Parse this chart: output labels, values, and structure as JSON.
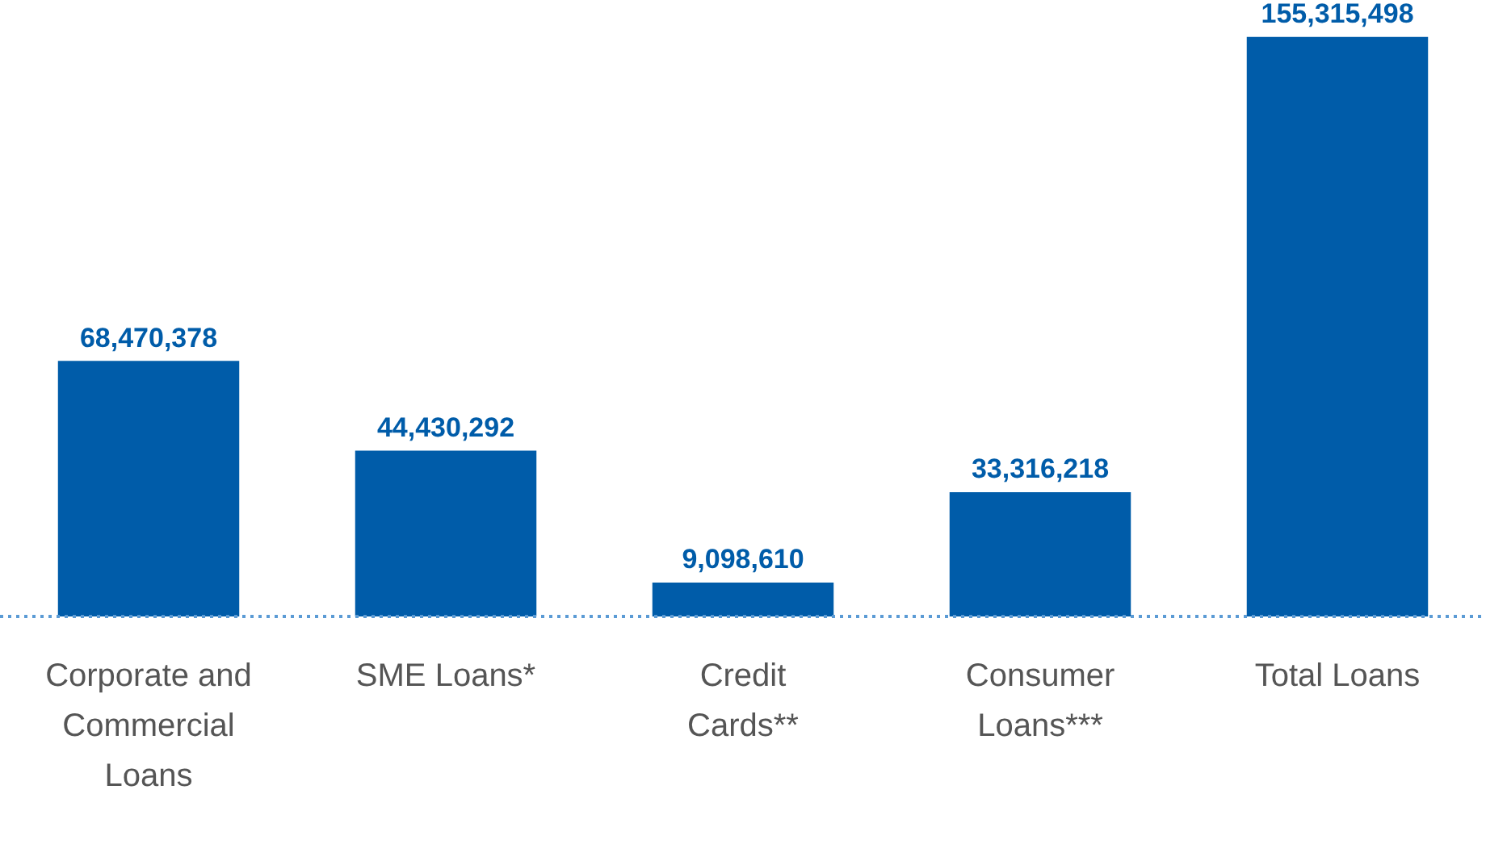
{
  "chart_data": {
    "type": "bar",
    "categories": [
      "Corporate and Commercial Loans",
      "SME Loans*",
      "Credit Cards**",
      "Consumer Loans***",
      "Total Loans"
    ],
    "values": [
      68470378,
      44430292,
      9098610,
      33316218,
      155315498
    ],
    "color": "#005ca9",
    "value_labels": [
      "68,470,378",
      "44,430,292",
      "9,098,610",
      "33,316,218",
      "155,315,498"
    ],
    "grid": false,
    "tick_labels": "x"
  }
}
